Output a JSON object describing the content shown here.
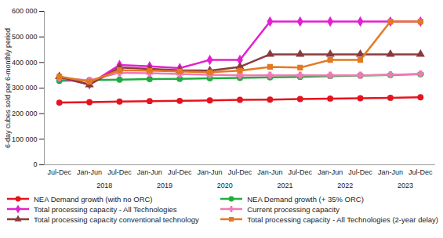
{
  "chart_data": {
    "type": "line",
    "y_label": "6-day cubes sold per 6-monthly period",
    "categories": [
      "Jul-Dec",
      "Jan-Jun",
      "Jul-Dec",
      "Jan-Jun",
      "Jul-Dec",
      "Jan-Jun",
      "Jul-Dec",
      "Jan-Jun",
      "Jul-Dec",
      "Jan-Jun",
      "Jul-Dec",
      "Jan-Jun",
      "Jul-Dec"
    ],
    "x_groups": [
      null,
      "2018",
      "2018",
      "2019",
      "2019",
      "2020",
      "2020",
      "2021",
      "2021",
      "2022",
      "2022",
      "2023",
      "2023"
    ],
    "ylim": [
      0,
      600000
    ],
    "yticks": [
      {
        "value": 0,
        "label": "0"
      },
      {
        "value": 100000,
        "label": "100 000"
      },
      {
        "value": 200000,
        "label": "200 000"
      },
      {
        "value": 300000,
        "label": "300 000"
      },
      {
        "value": 400000,
        "label": "400 000"
      },
      {
        "value": 500000,
        "label": "500 000"
      },
      {
        "value": 600000,
        "label": "600 000"
      }
    ],
    "grid": false,
    "legend": "bottom",
    "series": [
      {
        "name": "NEA Demand growth (with no ORC)",
        "color": "#e5141f",
        "marker": "circle",
        "values": [
          243000,
          245000,
          247000,
          249000,
          250000,
          252000,
          254000,
          255000,
          257000,
          259000,
          260000,
          262000,
          264000
        ]
      },
      {
        "name": "NEA Demand growth (+ 35% ORC)",
        "color": "#1fae3f",
        "marker": "circle",
        "values": [
          328000,
          331000,
          333000,
          335000,
          336000,
          338000,
          340000,
          342000,
          344000,
          347000,
          349000,
          351000,
          354000
        ]
      },
      {
        "name": "Total processing capacity - All Technologies",
        "color": "#e41fd2",
        "marker": "diamond",
        "values": [
          340000,
          315000,
          390000,
          385000,
          378000,
          410000,
          410000,
          560000,
          560000,
          560000,
          560000,
          560000,
          560000
        ]
      },
      {
        "name": "Current processing capacity",
        "color": "#f07ab4",
        "marker": "cross",
        "values": [
          340000,
          330000,
          360000,
          358000,
          355000,
          352000,
          350000,
          350000,
          350000,
          350000,
          350000,
          352000,
          355000
        ]
      },
      {
        "name": "Total processing capacity conventional technology",
        "color": "#8b3b3b",
        "marker": "triangle",
        "values": [
          345000,
          313000,
          380000,
          375000,
          370000,
          368000,
          383000,
          432000,
          432000,
          432000,
          432000,
          432000,
          432000
        ]
      },
      {
        "name": "Total processing capacity - All Technologies (2-year delay)",
        "color": "#e27a22",
        "marker": "square",
        "values": [
          345000,
          325000,
          370000,
          368000,
          365000,
          362000,
          368000,
          383000,
          380000,
          410000,
          410000,
          560000,
          560000
        ]
      }
    ]
  }
}
